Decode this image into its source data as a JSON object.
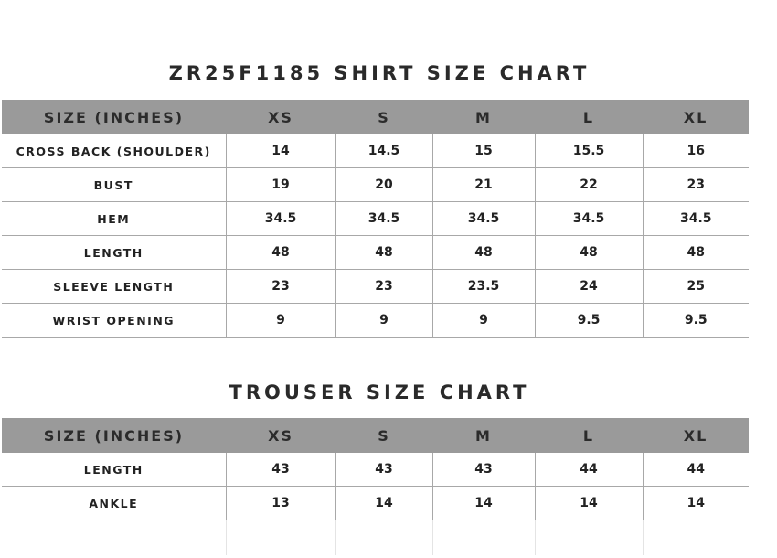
{
  "shirt": {
    "title": "ZR25F1185 SHIRT SIZE CHART",
    "headers": [
      "SIZE (INCHES)",
      "XS",
      "S",
      "M",
      "L",
      "XL"
    ],
    "rows": [
      [
        "CROSS BACK (SHOULDER)",
        "14",
        "14.5",
        "15",
        "15.5",
        "16"
      ],
      [
        "BUST",
        "19",
        "20",
        "21",
        "22",
        "23"
      ],
      [
        "HEM",
        "34.5",
        "34.5",
        "34.5",
        "34.5",
        "34.5"
      ],
      [
        "LENGTH",
        "48",
        "48",
        "48",
        "48",
        "48"
      ],
      [
        "SLEEVE LENGTH",
        "23",
        "23",
        "23.5",
        "24",
        "25"
      ],
      [
        "WRIST OPENING",
        "9",
        "9",
        "9",
        "9.5",
        "9.5"
      ]
    ]
  },
  "trouser": {
    "title": "TROUSER SIZE CHART",
    "headers": [
      "SIZE (INCHES)",
      "XS",
      "S",
      "M",
      "L",
      "XL"
    ],
    "rows": [
      [
        "LENGTH",
        "43",
        "43",
        "43",
        "44",
        "44"
      ],
      [
        "ANKLE",
        "13",
        "14",
        "14",
        "14",
        "14"
      ]
    ]
  },
  "colors": {
    "header_bg": "#9a9a9a",
    "grid": "#a8a8a8"
  }
}
